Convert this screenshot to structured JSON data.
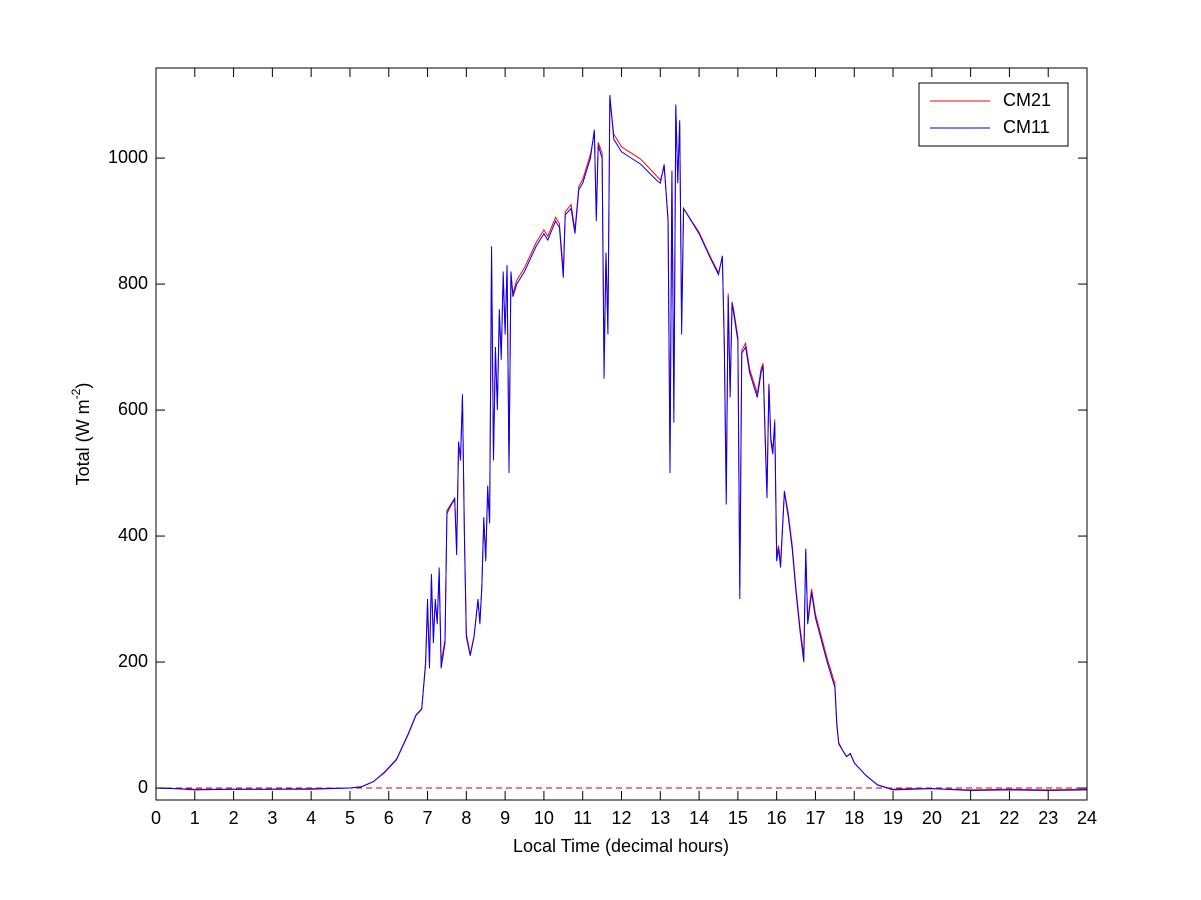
{
  "chart_data": {
    "type": "line",
    "x_label": "Local Time (decimal hours)",
    "y_label": [
      "Total (W m",
      "-2",
      ")"
    ],
    "xlim": [
      0,
      24
    ],
    "xticks": [
      0,
      1,
      2,
      3,
      4,
      5,
      6,
      7,
      8,
      9,
      10,
      11,
      12,
      13,
      14,
      15,
      16,
      17,
      18,
      19,
      20,
      21,
      22,
      23,
      24
    ],
    "ylim": [
      -19,
      1143
    ],
    "yticks": [
      0,
      200,
      400,
      600,
      800,
      1000
    ],
    "grid": false,
    "legend": "northeast",
    "reference_line": {
      "y": 0,
      "color": "#c00000",
      "style": "dashed"
    },
    "x": [
      0,
      0.5,
      1,
      2,
      3,
      4,
      5,
      5.3,
      5.6,
      5.9,
      6.2,
      6.5,
      6.7,
      6.85,
      6.95,
      7,
      7.05,
      7.1,
      7.15,
      7.2,
      7.25,
      7.3,
      7.35,
      7.45,
      7.5,
      7.6,
      7.7,
      7.75,
      7.8,
      7.85,
      7.9,
      7.95,
      8,
      8.1,
      8.2,
      8.3,
      8.35,
      8.4,
      8.45,
      8.5,
      8.55,
      8.6,
      8.65,
      8.7,
      8.75,
      8.8,
      8.85,
      8.9,
      8.95,
      9,
      9.05,
      9.1,
      9.15,
      9.2,
      9.3,
      9.5,
      9.8,
      10,
      10.1,
      10.3,
      10.4,
      10.5,
      10.55,
      10.7,
      10.8,
      10.9,
      11,
      11.1,
      11.2,
      11.3,
      11.35,
      11.4,
      11.5,
      11.55,
      11.6,
      11.65,
      11.7,
      11.8,
      12,
      12.5,
      12.9,
      13,
      13.1,
      13.2,
      13.25,
      13.3,
      13.35,
      13.4,
      13.45,
      13.5,
      13.55,
      13.6,
      14,
      14.3,
      14.5,
      14.6,
      14.65,
      14.7,
      14.75,
      14.8,
      14.85,
      14.9,
      15,
      15.05,
      15.1,
      15.2,
      15.3,
      15.5,
      15.6,
      15.65,
      15.7,
      15.75,
      15.8,
      15.85,
      15.9,
      15.95,
      16,
      16.05,
      16.1,
      16.2,
      16.3,
      16.4,
      16.5,
      16.6,
      16.7,
      16.75,
      16.8,
      16.9,
      17,
      17.3,
      17.5,
      17.55,
      17.6,
      17.7,
      17.8,
      17.9,
      18,
      18.3,
      18.6,
      19,
      19.5,
      20,
      21,
      22,
      23,
      24
    ],
    "series": [
      {
        "name": "CM21",
        "color": "#ff0000",
        "values": [
          0,
          -1,
          -2,
          -2,
          -2,
          -1,
          0,
          2,
          10,
          26,
          46,
          86,
          116,
          126,
          195,
          290,
          200,
          330,
          240,
          295,
          265,
          340,
          200,
          235,
          435,
          448,
          458,
          380,
          545,
          525,
          620,
          410,
          245,
          212,
          242,
          298,
          265,
          318,
          425,
          365,
          470,
          425,
          840,
          530,
          690,
          610,
          750,
          690,
          810,
          725,
          825,
          520,
          815,
          785,
          806,
          826,
          866,
          886,
          876,
          906,
          896,
          820,
          915,
          926,
          886,
          955,
          966,
          986,
          1006,
          1040,
          910,
          1025,
          1008,
          680,
          845,
          730,
          1095,
          1038,
          1018,
          998,
          972,
          965,
          985,
          905,
          520,
          975,
          600,
          1080,
          965,
          1055,
          740,
          920,
          882,
          842,
          818,
          842,
          710,
          470,
          785,
          630,
          772,
          756,
          716,
          320,
          695,
          706,
          666,
          626,
          666,
          674,
          570,
          470,
          642,
          556,
          536,
          585,
          370,
          385,
          356,
          472,
          436,
          386,
          316,
          256,
          210,
          375,
          266,
          316,
          276,
          206,
          166,
          105,
          72,
          60,
          50,
          54,
          40,
          20,
          5,
          -2,
          -1,
          -1,
          -3,
          -2,
          -3,
          -2
        ]
      },
      {
        "name": "CM11",
        "color": "#0000ff",
        "values": [
          0,
          -1,
          -3,
          -2,
          -2,
          -2,
          0,
          2,
          10,
          25,
          45,
          85,
          115,
          125,
          200,
          300,
          190,
          340,
          230,
          300,
          260,
          350,
          190,
          230,
          440,
          450,
          460,
          370,
          550,
          520,
          625,
          400,
          240,
          210,
          240,
          300,
          260,
          320,
          430,
          360,
          480,
          420,
          860,
          520,
          700,
          600,
          760,
          680,
          820,
          720,
          830,
          500,
          820,
          780,
          800,
          820,
          860,
          880,
          870,
          900,
          890,
          810,
          910,
          920,
          880,
          950,
          960,
          980,
          1000,
          1045,
          900,
          1020,
          1000,
          650,
          850,
          720,
          1100,
          1030,
          1010,
          990,
          965,
          960,
          990,
          900,
          500,
          980,
          580,
          1085,
          960,
          1060,
          720,
          920,
          880,
          840,
          815,
          845,
          700,
          450,
          780,
          620,
          770,
          750,
          710,
          300,
          690,
          700,
          660,
          620,
          660,
          670,
          560,
          460,
          640,
          550,
          530,
          580,
          360,
          380,
          350,
          470,
          430,
          380,
          310,
          250,
          200,
          380,
          260,
          310,
          270,
          200,
          160,
          100,
          70,
          60,
          50,
          55,
          40,
          20,
          5,
          -3,
          -2,
          -1,
          -4,
          -3,
          -4,
          -3
        ]
      }
    ]
  }
}
